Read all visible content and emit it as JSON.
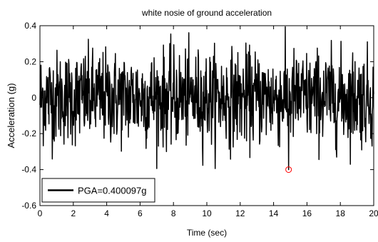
{
  "chart_data": {
    "type": "line",
    "title": "white nosie of ground acceleration",
    "xlabel": "Time (sec)",
    "ylabel": "Acceleration (g)",
    "xlim": [
      0,
      20
    ],
    "ylim": [
      -0.6,
      0.4
    ],
    "xticks": [
      0,
      2,
      4,
      6,
      8,
      10,
      12,
      14,
      16,
      18,
      20
    ],
    "yticks": [
      0.4,
      0.2,
      0,
      -0.2,
      -0.4,
      -0.6
    ],
    "xtick_labels": [
      "0",
      "2",
      "4",
      "6",
      "8",
      "10",
      "12",
      "14",
      "16",
      "18",
      "20"
    ],
    "ytick_labels": [
      "0.4",
      "0.2",
      "0",
      "-0.2",
      "-0.4",
      "-0.6"
    ],
    "grid": false,
    "legend": {
      "position": "bottom-left",
      "entries": [
        "PGA=0.400097g"
      ]
    },
    "series": [
      {
        "name": "PGA=0.400097g",
        "color": "#000000",
        "sample_interval_sec": 0.02,
        "sample_count": 1001,
        "amplitude_envelope_g": [
          -0.4,
          0.4
        ]
      }
    ],
    "peak_marker": {
      "x": 14.9,
      "y": -0.4,
      "color": "#ff0000",
      "shape": "circle"
    }
  }
}
